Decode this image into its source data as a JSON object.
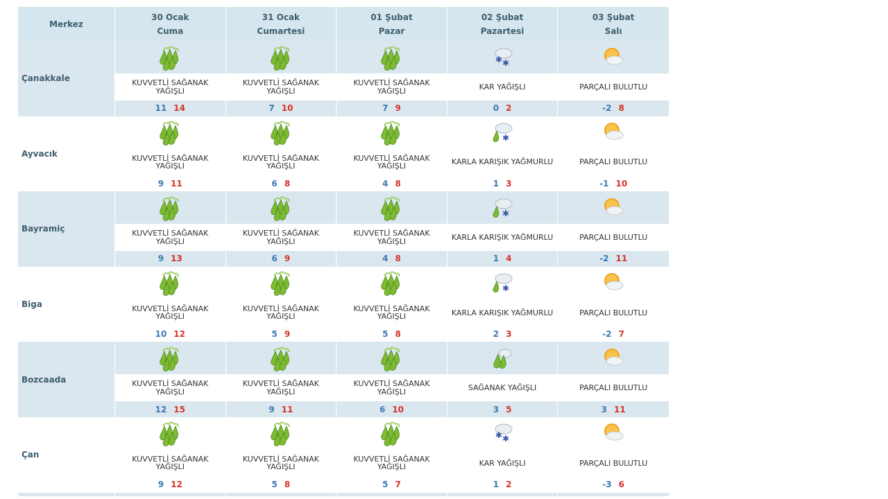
{
  "header": {
    "center_label": "Merkez",
    "days": [
      {
        "date": "30 Ocak",
        "weekday": "Cuma"
      },
      {
        "date": "31 Ocak",
        "weekday": "Cumartesi"
      },
      {
        "date": "01 Şubat",
        "weekday": "Pazar"
      },
      {
        "date": "02 Şubat",
        "weekday": "Pazartesi"
      },
      {
        "date": "03 Şubat",
        "weekday": "Salı"
      }
    ]
  },
  "cities": [
    {
      "name": "Çanakkale",
      "days": [
        {
          "icon": "heavy-shower-icon",
          "desc": "KUVVETLİ SAĞANAK YAĞIŞLI",
          "min": "11",
          "max": "14"
        },
        {
          "icon": "heavy-shower-icon",
          "desc": "KUVVETLİ SAĞANAK YAĞIŞLI",
          "min": "7",
          "max": "10"
        },
        {
          "icon": "heavy-shower-icon",
          "desc": "KUVVETLİ SAĞANAK YAĞIŞLI",
          "min": "7",
          "max": "9"
        },
        {
          "icon": "snow-icon",
          "desc": "KAR YAĞIŞLI",
          "min": "0",
          "max": "2"
        },
        {
          "icon": "partly-cloudy-icon",
          "desc": "PARÇALI BULUTLU",
          "min": "-2",
          "max": "8"
        }
      ]
    },
    {
      "name": "Ayvacık",
      "days": [
        {
          "icon": "heavy-shower-icon",
          "desc": "KUVVETLİ SAĞANAK YAĞIŞLI",
          "min": "9",
          "max": "11"
        },
        {
          "icon": "heavy-shower-icon",
          "desc": "KUVVETLİ SAĞANAK YAĞIŞLI",
          "min": "6",
          "max": "8"
        },
        {
          "icon": "heavy-shower-icon",
          "desc": "KUVVETLİ SAĞANAK YAĞIŞLI",
          "min": "4",
          "max": "8"
        },
        {
          "icon": "sleet-icon",
          "desc": "KARLA KARIŞIK YAĞMURLU",
          "min": "1",
          "max": "3"
        },
        {
          "icon": "partly-cloudy-icon",
          "desc": "PARÇALI BULUTLU",
          "min": "-1",
          "max": "10"
        }
      ]
    },
    {
      "name": "Bayramiç",
      "days": [
        {
          "icon": "heavy-shower-icon",
          "desc": "KUVVETLİ SAĞANAK YAĞIŞLI",
          "min": "9",
          "max": "13"
        },
        {
          "icon": "heavy-shower-icon",
          "desc": "KUVVETLİ SAĞANAK YAĞIŞLI",
          "min": "6",
          "max": "9"
        },
        {
          "icon": "heavy-shower-icon",
          "desc": "KUVVETLİ SAĞANAK YAĞIŞLI",
          "min": "4",
          "max": "8"
        },
        {
          "icon": "sleet-icon",
          "desc": "KARLA KARIŞIK YAĞMURLU",
          "min": "1",
          "max": "4"
        },
        {
          "icon": "partly-cloudy-icon",
          "desc": "PARÇALI BULUTLU",
          "min": "-2",
          "max": "11"
        }
      ]
    },
    {
      "name": "Biga",
      "days": [
        {
          "icon": "heavy-shower-icon",
          "desc": "KUVVETLİ SAĞANAK YAĞIŞLI",
          "min": "10",
          "max": "12"
        },
        {
          "icon": "heavy-shower-icon",
          "desc": "KUVVETLİ SAĞANAK YAĞIŞLI",
          "min": "5",
          "max": "9"
        },
        {
          "icon": "heavy-shower-icon",
          "desc": "KUVVETLİ SAĞANAK YAĞIŞLI",
          "min": "5",
          "max": "8"
        },
        {
          "icon": "sleet-icon",
          "desc": "KARLA KARIŞIK YAĞMURLU",
          "min": "2",
          "max": "3"
        },
        {
          "icon": "partly-cloudy-icon",
          "desc": "PARÇALI BULUTLU",
          "min": "-2",
          "max": "7"
        }
      ]
    },
    {
      "name": "Bozcaada",
      "days": [
        {
          "icon": "heavy-shower-icon",
          "desc": "KUVVETLİ SAĞANAK YAĞIŞLI",
          "min": "12",
          "max": "15"
        },
        {
          "icon": "heavy-shower-icon",
          "desc": "KUVVETLİ SAĞANAK YAĞIŞLI",
          "min": "9",
          "max": "11"
        },
        {
          "icon": "heavy-shower-icon",
          "desc": "KUVVETLİ SAĞANAK YAĞIŞLI",
          "min": "6",
          "max": "10"
        },
        {
          "icon": "shower-icon",
          "desc": "SAĞANAK YAĞIŞLI",
          "min": "3",
          "max": "5"
        },
        {
          "icon": "partly-cloudy-icon",
          "desc": "PARÇALI BULUTLU",
          "min": "3",
          "max": "11"
        }
      ]
    },
    {
      "name": "Çan",
      "days": [
        {
          "icon": "heavy-shower-icon",
          "desc": "KUVVETLİ SAĞANAK YAĞIŞLI",
          "min": "9",
          "max": "12"
        },
        {
          "icon": "heavy-shower-icon",
          "desc": "KUVVETLİ SAĞANAK YAĞIŞLI",
          "min": "5",
          "max": "8"
        },
        {
          "icon": "heavy-shower-icon",
          "desc": "KUVVETLİ SAĞANAK YAĞIŞLI",
          "min": "5",
          "max": "7"
        },
        {
          "icon": "snow-icon",
          "desc": "KAR YAĞIŞLI",
          "min": "1",
          "max": "2"
        },
        {
          "icon": "partly-cloudy-icon",
          "desc": "PARÇALI BULUTLU",
          "min": "-3",
          "max": "6"
        }
      ]
    }
  ],
  "colors": {
    "header_bg": "#d6e6ee",
    "row_shade": "#dbe7ee",
    "min_temp": "#3b78b4",
    "max_temp": "#d6322c",
    "rain_green": "#7dbb35",
    "snow_blue": "#3a55a8",
    "sun_orange": "#f0a020"
  }
}
